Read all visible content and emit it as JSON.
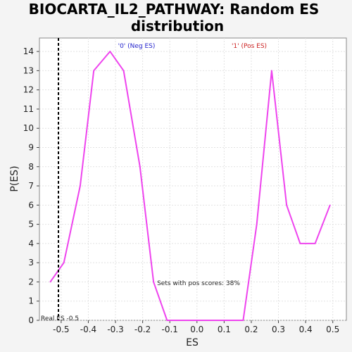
{
  "chart_data": {
    "type": "line",
    "title_line1": "BIOCARTA_IL2_PATHWAY: Random ES",
    "title_line2": "distribution",
    "xlabel": "ES",
    "ylabel": "P(ES)",
    "xlim": [
      -0.58,
      0.55
    ],
    "ylim": [
      0,
      14.7
    ],
    "x_ticks": [
      -0.5,
      -0.4,
      -0.3,
      -0.2,
      -0.1,
      0.0,
      0.1,
      0.2,
      0.3,
      0.4,
      0.5
    ],
    "x_tick_labels": [
      "-0.5",
      "-0.4",
      "-0.3",
      "-0.2",
      "-0.1",
      "0.0",
      "0.1",
      "0.2",
      "0.3",
      "0.4",
      "0.5"
    ],
    "y_ticks": [
      0,
      1,
      2,
      3,
      4,
      5,
      6,
      7,
      8,
      9,
      10,
      11,
      12,
      13,
      14
    ],
    "y_tick_labels": [
      "0",
      "1",
      "2",
      "3",
      "4",
      "5",
      "6",
      "7",
      "8",
      "9",
      "10",
      "11",
      "12",
      "13",
      "14"
    ],
    "grid": true,
    "series": [
      {
        "color": "#ee44ee",
        "x": [
          -0.54,
          -0.49,
          -0.43,
          -0.38,
          -0.32,
          -0.27,
          -0.21,
          -0.16,
          -0.11,
          -0.05,
          0.0,
          0.06,
          0.11,
          0.17,
          0.22,
          0.275,
          0.33,
          0.38,
          0.435,
          0.49
        ],
        "y": [
          2,
          3,
          7,
          13,
          14,
          13,
          8,
          2,
          0,
          0,
          0,
          0,
          0,
          0,
          5,
          13,
          6,
          4,
          4,
          6
        ]
      }
    ],
    "real_es": {
      "value": -0.51,
      "label": "Real ES -0.5"
    },
    "annotations": {
      "neg_label": "'0' (Neg ES)",
      "neg_color": "#2222cc",
      "pos_label": "'1' (Pos ES)",
      "pos_color": "#cc2222",
      "pos_scores": "Sets with pos scores: 38%"
    }
  }
}
